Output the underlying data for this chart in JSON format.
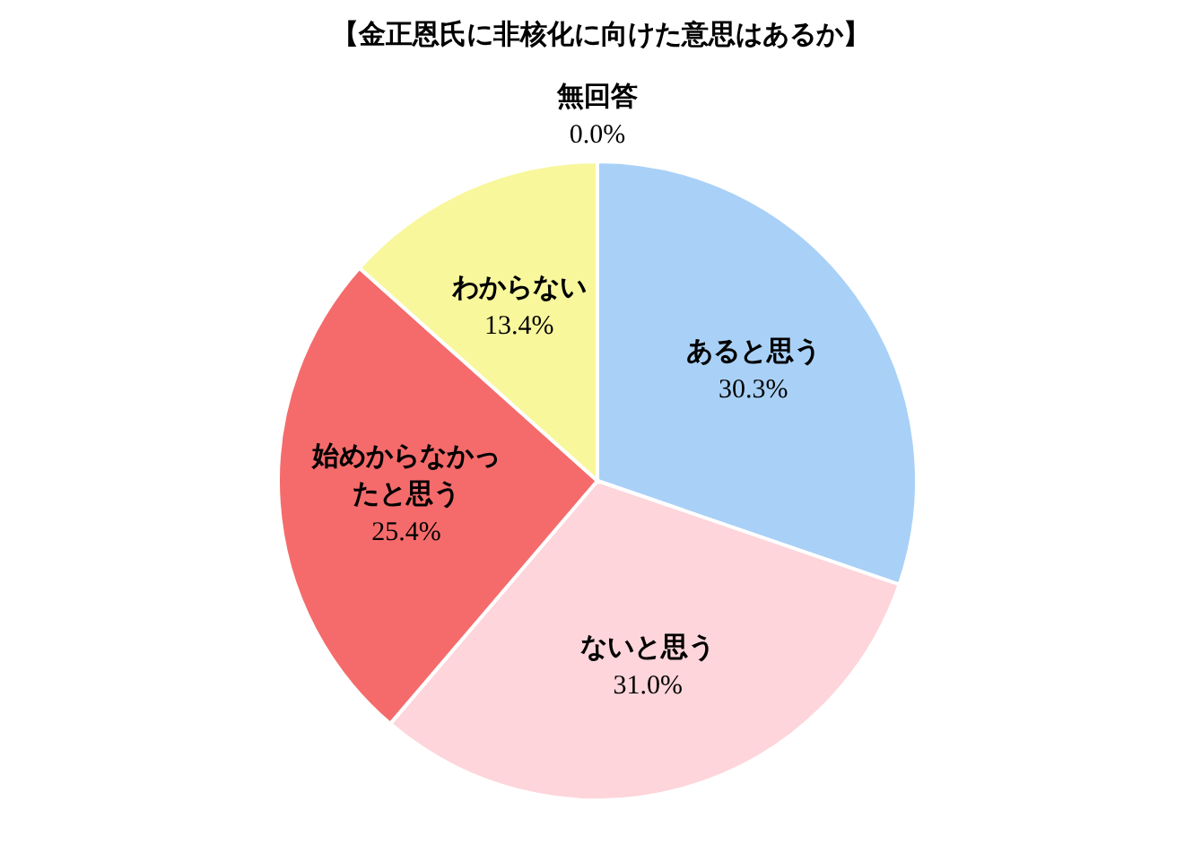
{
  "chart_data": {
    "type": "pie",
    "title": "【金正恩氏に非核化に向けた意思はあるか】",
    "categories": [
      "あると思う",
      "ないと思う",
      "始めからなかったと思う",
      "わからない",
      "無回答"
    ],
    "values": [
      30.3,
      31.0,
      25.4,
      13.4,
      0.0
    ],
    "value_labels": [
      "30.3%",
      "31.0%",
      "25.4%",
      "13.4%",
      "0.0%"
    ],
    "colors": [
      "#a9d1f7",
      "#fdd5da",
      "#f56b6b",
      "#f8f79c",
      "#d9d9d9"
    ],
    "legend": false
  }
}
